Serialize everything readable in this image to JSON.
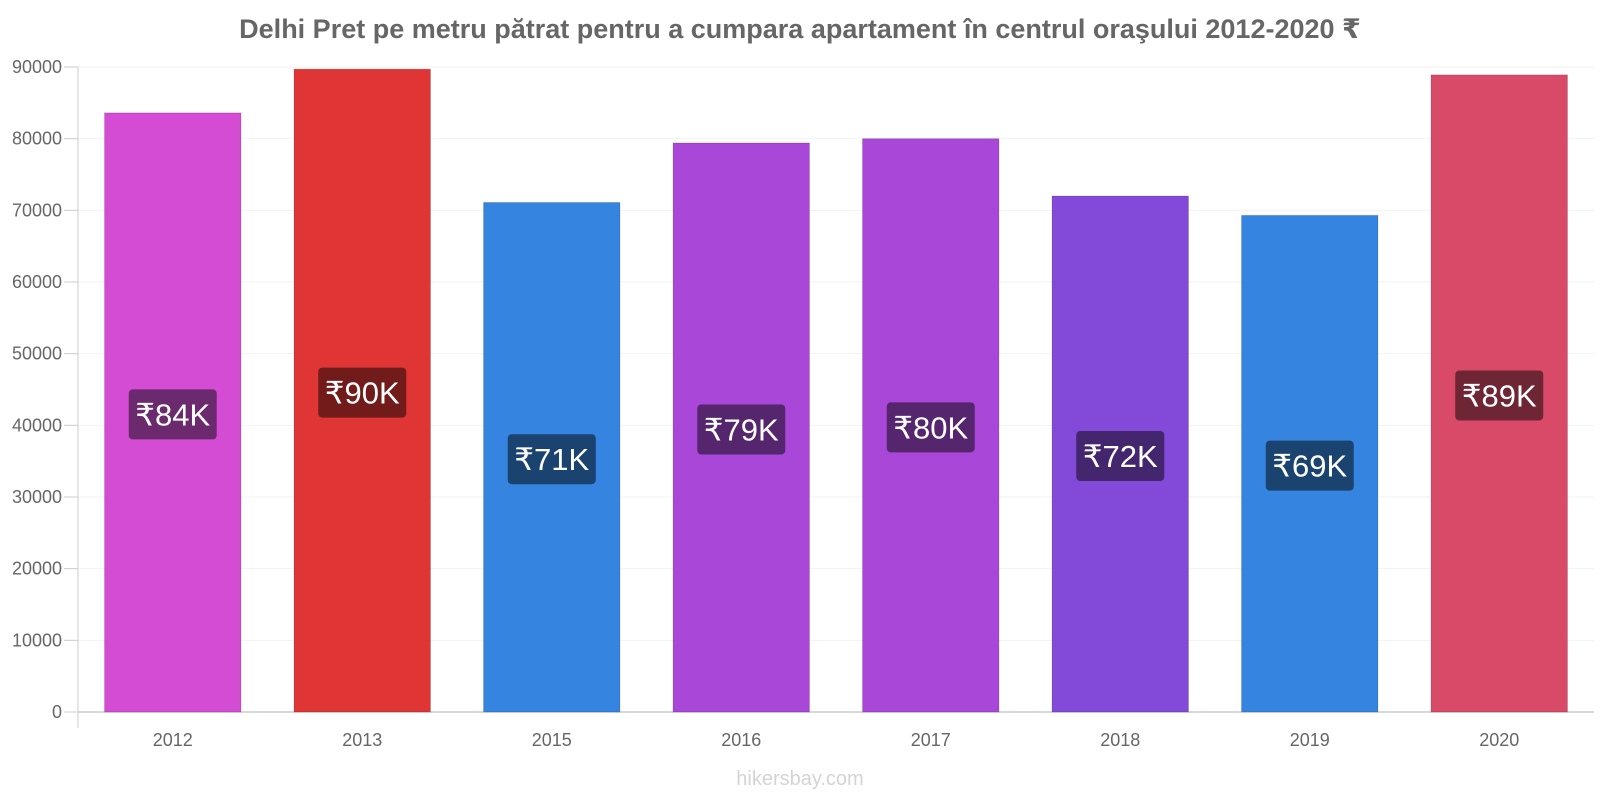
{
  "title": "Delhi Pret pe metru pătrat pentru a cumpara apartament în centrul oraşului 2012-2020 ₹",
  "watermark": "hikersbay.com",
  "chart_data": {
    "type": "bar",
    "categories": [
      "2012",
      "2013",
      "2015",
      "2016",
      "2017",
      "2018",
      "2019",
      "2020"
    ],
    "values": [
      83600,
      89700,
      71100,
      79400,
      80000,
      72000,
      69300,
      88900
    ],
    "data_labels": [
      "₹84K",
      "₹90K",
      "₹71K",
      "₹79K",
      "₹80K",
      "₹72K",
      "₹69K",
      "₹89K"
    ],
    "bar_colors": [
      "#d44bd4",
      "#e03535",
      "#3584e0",
      "#a847d8",
      "#a847d8",
      "#8349d8",
      "#3584e0",
      "#d84a68"
    ],
    "label_bg_colors": [
      "#6b2a6e",
      "#711b1b",
      "#1b436f",
      "#55266e",
      "#55266e",
      "#43266e",
      "#1b436f",
      "#6e2534"
    ],
    "ylim": [
      0,
      90000
    ],
    "yticks": [
      0,
      10000,
      20000,
      30000,
      40000,
      50000,
      60000,
      70000,
      80000,
      90000
    ],
    "grid": true,
    "legend": "none"
  }
}
